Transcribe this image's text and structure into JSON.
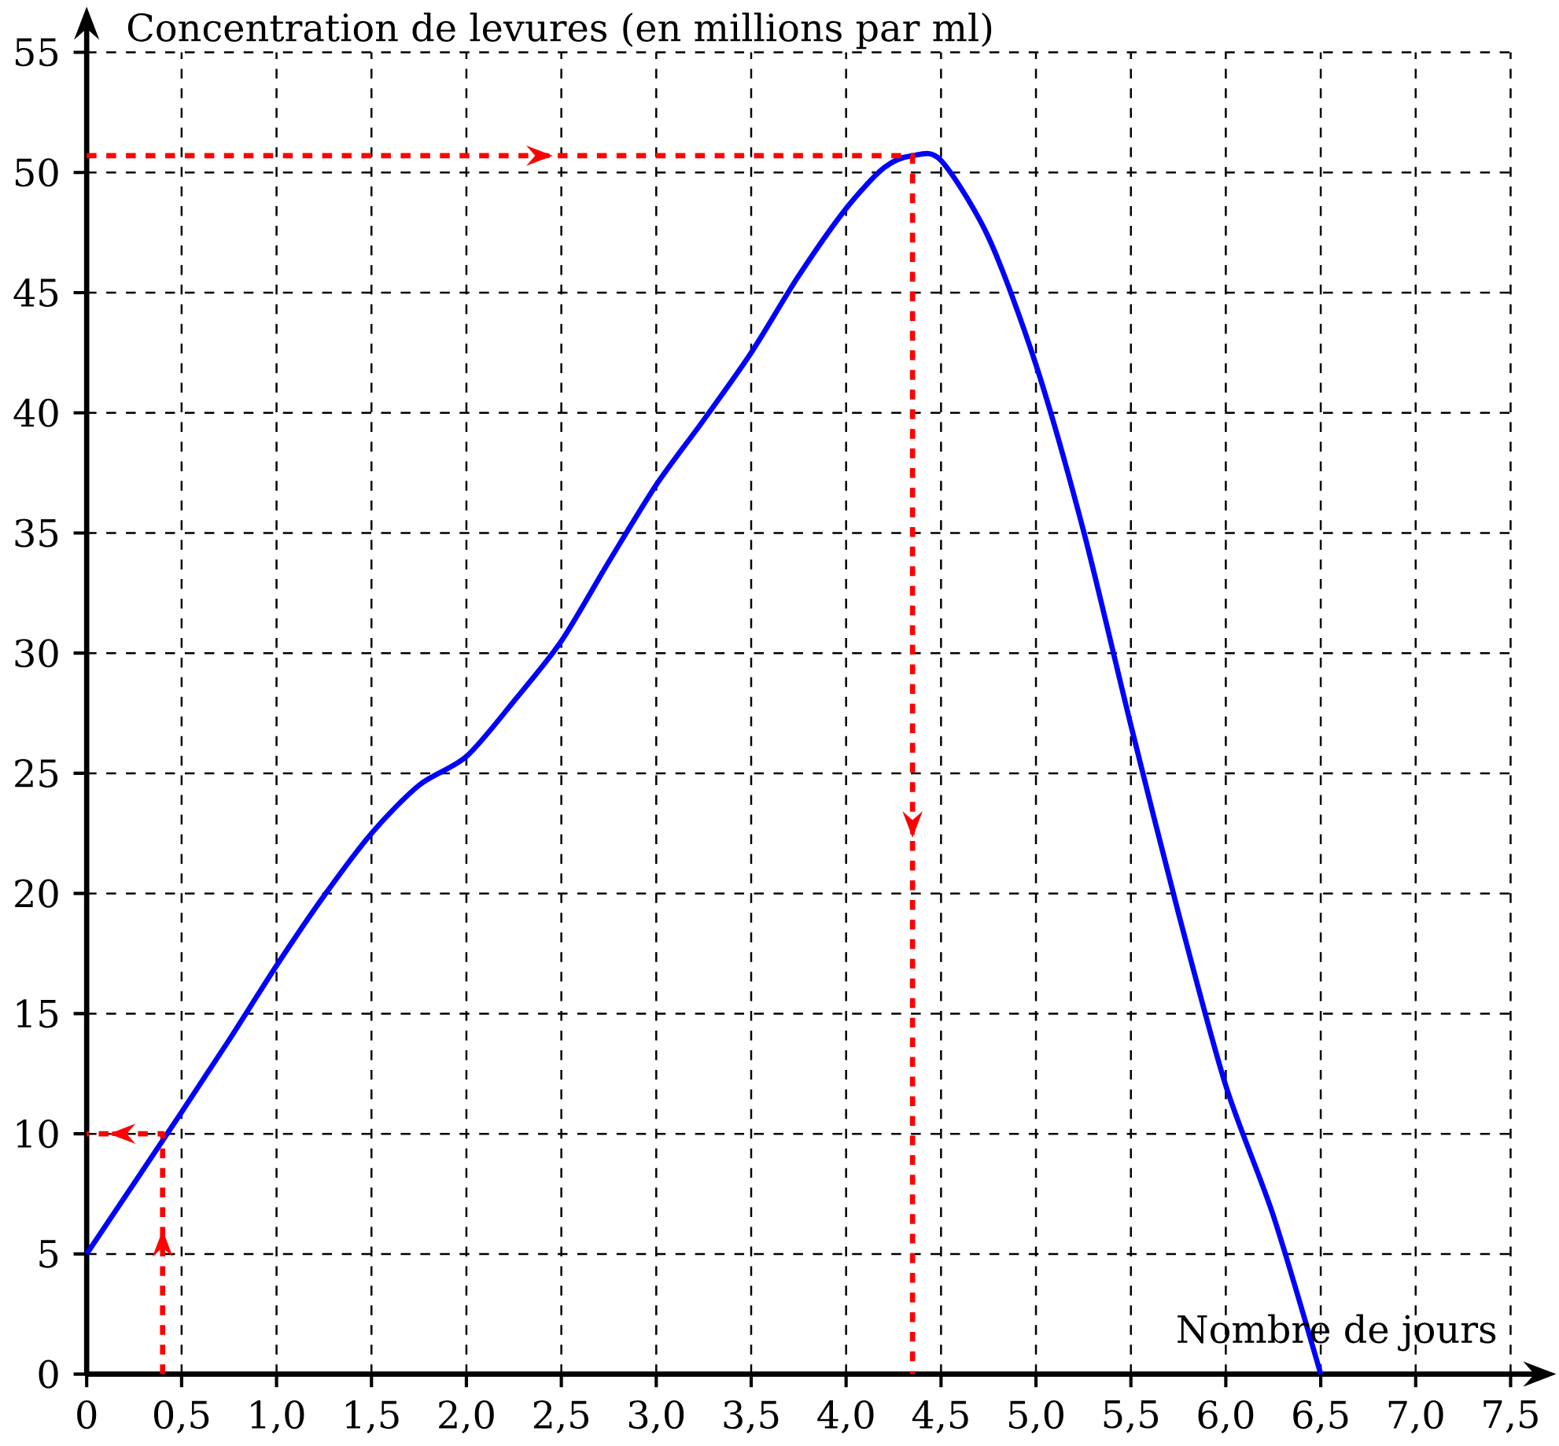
{
  "chart_data": {
    "type": "line",
    "xlabel": "Nombre de jours",
    "ylabel": "Concentration de levures (en millions par ml)",
    "xlim": [
      0,
      7.5
    ],
    "ylim": [
      0,
      55
    ],
    "xticks": [
      0,
      {
        "value": 0.5,
        "label": "0,5"
      },
      {
        "value": 1,
        "label": "1,0"
      },
      {
        "value": 1.5,
        "label": "1,5"
      },
      {
        "value": 2,
        "label": "2,0"
      },
      {
        "value": 2.5,
        "label": "2,5"
      },
      {
        "value": 3,
        "label": "3,0"
      },
      {
        "value": 3.5,
        "label": "3,5"
      },
      {
        "value": 4,
        "label": "4,0"
      },
      {
        "value": 4.5,
        "label": "4,5"
      },
      {
        "value": 5,
        "label": "5,0"
      },
      {
        "value": 5.5,
        "label": "5,5"
      },
      {
        "value": 6,
        "label": "6,0"
      },
      {
        "value": 6.5,
        "label": "6,5"
      },
      {
        "value": 7,
        "label": "7,0"
      },
      {
        "value": 7.5,
        "label": "7,5"
      }
    ],
    "yticks": [
      0,
      5,
      10,
      15,
      20,
      25,
      30,
      35,
      40,
      45,
      50,
      55
    ],
    "grid": true,
    "marker": "none",
    "series": [
      {
        "color": "#0000ff",
        "line_style": "solid",
        "x": [
          0,
          0.5,
          0.75,
          1,
          1.25,
          1.5,
          1.75,
          2,
          2.25,
          2.5,
          2.75,
          3,
          3.25,
          3.5,
          3.75,
          4,
          4.2,
          4.35,
          4.5,
          4.75,
          5,
          5.25,
          5.5,
          5.75,
          6,
          6.25,
          6.5
        ],
        "values": [
          5,
          10.9,
          13.9,
          17,
          19.9,
          22.5,
          24.5,
          25.7,
          28,
          30.5,
          33.8,
          37,
          39.7,
          42.5,
          45.7,
          48.5,
          50.2,
          50.7,
          50.5,
          47.3,
          42,
          35.1,
          27,
          19.2,
          12,
          6.6,
          0
        ]
      },
      {
        "color": "#ff0000",
        "line_style": "dashed",
        "x": [
          0.4,
          0.4,
          0
        ],
        "values": [
          0,
          10,
          10
        ]
      },
      {
        "color": "#ff0000",
        "line_style": "dashed",
        "x": [
          0,
          4.35,
          4.35
        ],
        "values": [
          50.7,
          50.7,
          0
        ]
      }
    ]
  }
}
